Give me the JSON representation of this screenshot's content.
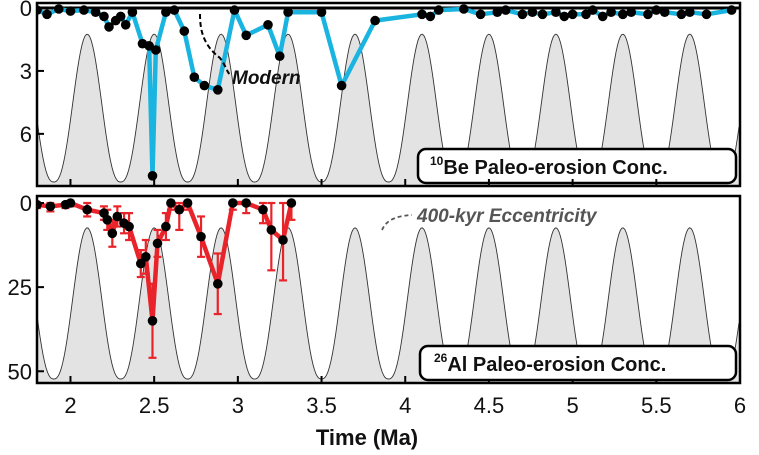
{
  "colors": {
    "be_line": "#1ab4e0",
    "al_line": "#e8242a",
    "marker": "#000000",
    "eccentricity_fill": "#e3e3e3",
    "eccentricity_stroke": "#333333",
    "eccentricity_label": "#555555",
    "frame": "#000000"
  },
  "chart_data": [
    {
      "type": "line",
      "panel": "top",
      "label_sup": "10",
      "label_text": "Be Paleo-erosion Conc.",
      "xlim": [
        1.8,
        6.0
      ],
      "ylim": [
        0,
        8.2
      ],
      "y_inverted": true,
      "y_ticks": [
        0,
        3,
        6
      ],
      "y_tick_labels": [
        "0",
        "3",
        "6"
      ],
      "modern_level": 0,
      "series": [
        {
          "name": "10Be",
          "x": [
            1.8,
            1.86,
            1.93,
            2.0,
            2.08,
            2.15,
            2.2,
            2.23,
            2.27,
            2.3,
            2.33,
            2.37,
            2.43,
            2.47,
            2.49,
            2.51,
            2.57,
            2.62,
            2.68,
            2.74,
            2.8,
            2.88,
            2.98,
            3.05,
            3.18,
            3.25,
            3.3,
            3.5,
            3.62,
            3.82,
            4.1,
            4.15,
            4.2,
            4.35,
            4.45,
            4.55,
            4.6,
            4.7,
            4.76,
            4.82,
            4.9,
            4.95,
            5.0,
            5.08,
            5.12,
            5.18,
            5.23,
            5.3,
            5.35,
            5.45,
            5.5,
            5.55,
            5.65,
            5.7,
            5.8,
            5.95
          ],
          "y": [
            0.1,
            0.3,
            0.05,
            0.15,
            0.1,
            0.2,
            0.4,
            0.9,
            0.6,
            0.4,
            0.8,
            0.2,
            1.7,
            1.8,
            8.0,
            2.0,
            0.2,
            0.1,
            1.1,
            3.3,
            3.7,
            3.9,
            0.1,
            1.3,
            0.8,
            2.3,
            0.2,
            0.2,
            3.7,
            0.6,
            0.3,
            0.4,
            0.1,
            0.05,
            0.3,
            0.2,
            0.1,
            0.3,
            0.2,
            0.3,
            0.2,
            0.4,
            0.3,
            0.3,
            0.1,
            0.4,
            0.2,
            0.3,
            0.2,
            0.3,
            0.1,
            0.2,
            0.3,
            0.2,
            0.3,
            0.1
          ]
        }
      ],
      "annotations": [
        {
          "text": "Modern",
          "x": 2.75,
          "y": 3.2
        }
      ]
    },
    {
      "type": "line",
      "panel": "bottom",
      "label_sup": "26",
      "label_text": "Al Paleo-erosion Conc.",
      "xlim": [
        1.8,
        6.0
      ],
      "ylim": [
        0,
        52
      ],
      "y_inverted": true,
      "y_ticks": [
        0,
        25,
        50
      ],
      "y_tick_labels": [
        "0",
        "25",
        "50"
      ],
      "x_ticks": [
        2,
        2.5,
        3,
        3.5,
        4,
        4.5,
        5,
        5.5,
        6
      ],
      "x_tick_labels": [
        "2",
        "2.5",
        "3",
        "3.5",
        "4",
        "4.5",
        "5",
        "5.5",
        "6"
      ],
      "xlabel": "Time (Ma)",
      "series": [
        {
          "name": "26Al",
          "x": [
            1.8,
            1.88,
            1.97,
            2.0,
            2.1,
            2.2,
            2.22,
            2.25,
            2.28,
            2.32,
            2.35,
            2.42,
            2.45,
            2.49,
            2.52,
            2.57,
            2.6,
            2.65,
            2.7,
            2.78,
            2.88,
            2.97,
            3.05,
            3.15,
            3.2,
            3.27,
            3.32
          ],
          "y": [
            0.5,
            1.0,
            0.5,
            0.0,
            2.0,
            3.0,
            5.0,
            9.0,
            4.0,
            6.0,
            7.0,
            18.0,
            16.0,
            35.0,
            12.0,
            7.0,
            0.0,
            2.0,
            0.0,
            10.0,
            24.0,
            0.0,
            0.0,
            2.0,
            8.0,
            11.0,
            0.0
          ],
          "err": [
            1.0,
            1.5,
            1.0,
            1.0,
            2.0,
            2.0,
            3.0,
            4.0,
            3.0,
            3.0,
            4.0,
            4.0,
            5.0,
            11.0,
            4.0,
            4.0,
            2.0,
            6.0,
            2.0,
            6.0,
            9.0,
            2.0,
            3.0,
            4.0,
            12.0,
            12.0,
            5.0
          ]
        }
      ],
      "annotations": [
        {
          "text": "400-kyr Eccentricity",
          "x": 4.0,
          "y": 3.0
        }
      ]
    }
  ],
  "eccentricity": {
    "period_ma": 0.4,
    "first_peak_ma": 1.7,
    "label": "400-kyr Eccentricity"
  }
}
